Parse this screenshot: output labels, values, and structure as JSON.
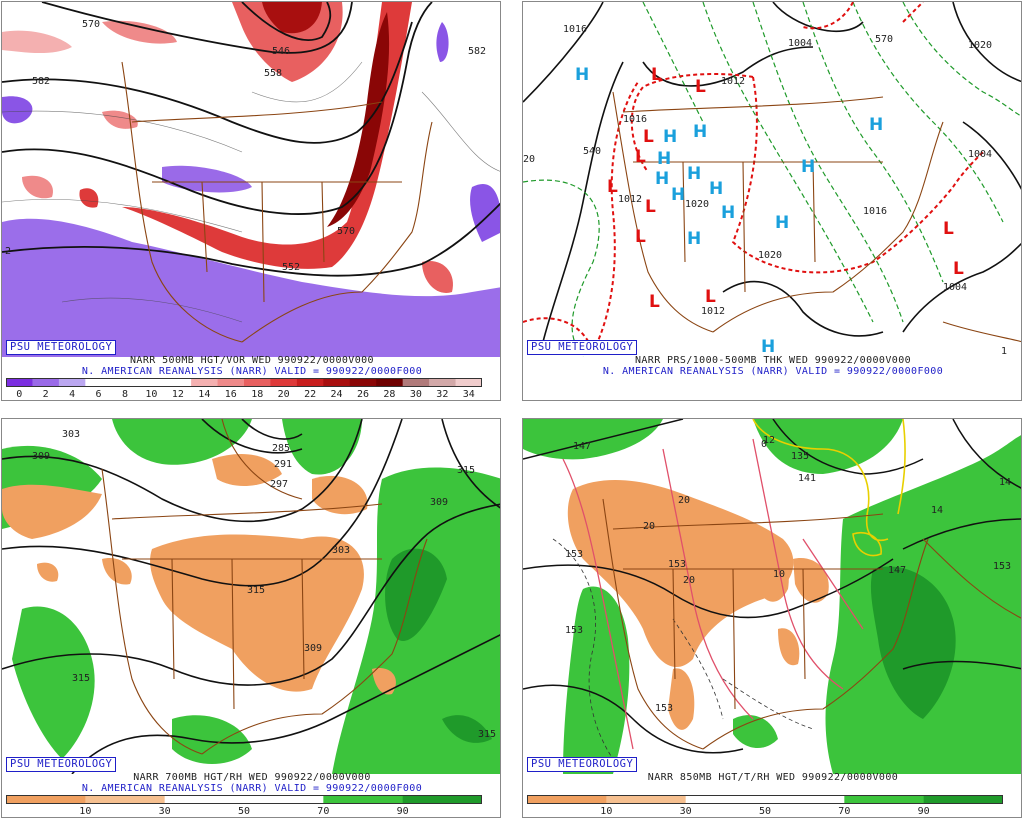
{
  "footer_label": "PSU METEOROLOGY",
  "panels": [
    {
      "title": "NARR 500MB HGT/VOR WED 990922/0000V000",
      "valid": "N. AMERICAN REANALYSIS (NARR) VALID = 990922/0000F000",
      "contour_labels": [
        "570",
        "546",
        "558",
        "582",
        "570",
        "552",
        "582",
        "2"
      ],
      "symbols": [],
      "colorbar": {
        "ticks": [
          "0",
          "2",
          "4",
          "6",
          "8",
          "10",
          "12",
          "14",
          "16",
          "18",
          "20",
          "22",
          "24",
          "26",
          "28",
          "30",
          "32",
          "34"
        ],
        "colors": [
          "#7b2ee0",
          "#9a6ae8",
          "#bba7f0",
          "#ffffff",
          "#ffffff",
          "#ffffff",
          "#ffffff",
          "#f4b0b0",
          "#ef8a8a",
          "#e86060",
          "#de3a3a",
          "#c81e1e",
          "#a80f0f",
          "#8a0606",
          "#6e0000",
          "#b07a7a",
          "#d2a8a8",
          "#f0cccc"
        ]
      }
    },
    {
      "title": "NARR PRS/1000-500MB THK WED 990922/0000V000",
      "valid": "N. AMERICAN REANALYSIS (NARR) VALID = 990922/0000F000",
      "contour_labels": [
        "1016",
        "1004",
        "1012",
        "1020",
        "1012",
        "1020",
        "1004",
        "1004",
        "1016",
        "1012",
        "1016",
        "1020",
        "540",
        "570",
        "20",
        "1"
      ],
      "symbols": [
        {
          "t": "L",
          "c": "#e01010"
        },
        {
          "t": "L",
          "c": "#e01010"
        },
        {
          "t": "L",
          "c": "#e01010"
        },
        {
          "t": "L",
          "c": "#e01010"
        },
        {
          "t": "L",
          "c": "#e01010"
        },
        {
          "t": "L",
          "c": "#e01010"
        },
        {
          "t": "L",
          "c": "#e01010"
        },
        {
          "t": "L",
          "c": "#e01010"
        },
        {
          "t": "L",
          "c": "#e01010"
        },
        {
          "t": "L",
          "c": "#e01010"
        },
        {
          "t": "L",
          "c": "#e01010"
        },
        {
          "t": "H",
          "c": "#1aa0dc"
        },
        {
          "t": "H",
          "c": "#1aa0dc"
        },
        {
          "t": "H",
          "c": "#1aa0dc"
        },
        {
          "t": "H",
          "c": "#1aa0dc"
        },
        {
          "t": "H",
          "c": "#1aa0dc"
        },
        {
          "t": "H",
          "c": "#1aa0dc"
        },
        {
          "t": "H",
          "c": "#1aa0dc"
        },
        {
          "t": "H",
          "c": "#1aa0dc"
        },
        {
          "t": "H",
          "c": "#1aa0dc"
        },
        {
          "t": "H",
          "c": "#1aa0dc"
        },
        {
          "t": "H",
          "c": "#1aa0dc"
        },
        {
          "t": "H",
          "c": "#1aa0dc"
        },
        {
          "t": "H",
          "c": "#1aa0dc"
        },
        {
          "t": "H",
          "c": "#1aa0dc"
        }
      ],
      "colorbar": null
    },
    {
      "title": "NARR 700MB HGT/RH WED 990922/0000V000",
      "valid": "N. AMERICAN REANALYSIS (NARR) VALID = 990922/0000F000",
      "contour_labels": [
        "303",
        "309",
        "297",
        "291",
        "285",
        "315",
        "309",
        "303",
        "315",
        "309",
        "315",
        "315"
      ],
      "symbols": [],
      "colorbar": {
        "ticks": [
          "10",
          "30",
          "50",
          "70",
          "90"
        ],
        "colors": [
          "#f0a060",
          "#f6c090",
          "#ffffff",
          "#ffffff",
          "#3cc43c",
          "#1f9a2a"
        ]
      }
    },
    {
      "title": "NARR 850MB HGT/T/RH WED 990922/0000V000",
      "valid": "",
      "contour_labels": [
        "147",
        "135",
        "141",
        "153",
        "153",
        "153",
        "147",
        "153",
        "153",
        "14",
        "14",
        "12",
        "0",
        "20",
        "20",
        "20",
        "10"
      ],
      "symbols": [],
      "colorbar": {
        "ticks": [
          "10",
          "30",
          "50",
          "70",
          "90"
        ],
        "colors": [
          "#f0a060",
          "#f6c090",
          "#ffffff",
          "#ffffff",
          "#3cc43c",
          "#1f9a2a"
        ]
      }
    }
  ]
}
